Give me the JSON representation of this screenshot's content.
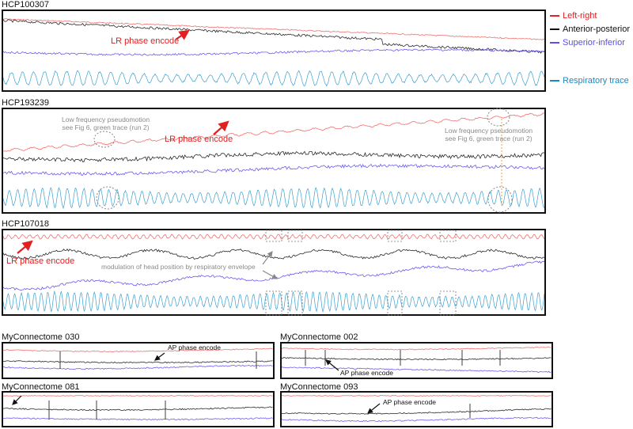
{
  "colors": {
    "left_right": "#f07070",
    "anterior_posterior": "#2a2a2a",
    "superior_inferior": "#6a5cf0",
    "respiratory": "#3aa0d0",
    "annotation_red": "#e32020",
    "annotation_gray": "#8a8a8a"
  },
  "legend": {
    "left_right": "Left-right",
    "anterior_posterior": "Anterior-posterior",
    "superior_inferior": "Superior-inferior",
    "respiratory": "Respiratory trace"
  },
  "panels": {
    "hcp100307": {
      "title": "HCP100307",
      "annotation": "LR phase encode"
    },
    "hcp193239": {
      "title": "HCP193239",
      "annotation": "LR phase encode",
      "pseudo_left_1": "Low frequency pseudomotion",
      "pseudo_left_2": "see Fig 6, green trace (run 2)",
      "pseudo_right_1": "Low frequency pseudomotion",
      "pseudo_right_2": "see Fig 6, green trace (run 2)"
    },
    "hcp107018": {
      "title": "HCP107018",
      "annotation": "LR phase encode",
      "modulation": "modulation of head position by respiratory envelope"
    },
    "mc030": {
      "title": "MyConnectome 030",
      "annotation": "AP phase encode"
    },
    "mc002": {
      "title": "MyConnectome 002",
      "annotation": "AP phase encode"
    },
    "mc081": {
      "title": "MyConnectome 081"
    },
    "mc093": {
      "title": "MyConnectome 093",
      "annotation": "AP phase encode"
    }
  }
}
